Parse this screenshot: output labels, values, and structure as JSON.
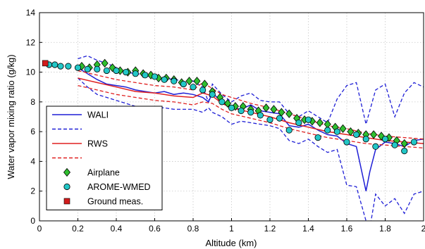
{
  "chart_data": {
    "type": "line",
    "xlabel": "Altitude (km)",
    "ylabel": "Water vapor mixing ratio (g/kg)",
    "xlim": [
      0,
      2
    ],
    "ylim": [
      0,
      14
    ],
    "xticks": [
      "0",
      "0.2",
      "0.4",
      "0.6",
      "0.8",
      "1",
      "1.2",
      "1.4",
      "1.6",
      "1.8",
      "2"
    ],
    "yticks": [
      "0",
      "2",
      "4",
      "6",
      "8",
      "10",
      "12",
      "14"
    ],
    "grid": true,
    "legend_position": "lower-left",
    "series": [
      {
        "name": "WALI",
        "style": "solid",
        "color": "#1f1fd6",
        "x": [
          0.2,
          0.25,
          0.3,
          0.35,
          0.4,
          0.45,
          0.5,
          0.55,
          0.6,
          0.65,
          0.7,
          0.75,
          0.8,
          0.85,
          0.88,
          0.9,
          0.95,
          1.0,
          1.05,
          1.1,
          1.15,
          1.2,
          1.25,
          1.3,
          1.35,
          1.4,
          1.45,
          1.5,
          1.55,
          1.6,
          1.65,
          1.7,
          1.72,
          1.75,
          1.8,
          1.85,
          1.9,
          1.95,
          2.0
        ],
        "y": [
          10.3,
          9.9,
          9.5,
          9.2,
          9.1,
          9.0,
          8.8,
          8.7,
          8.6,
          8.7,
          8.5,
          8.6,
          8.5,
          8.3,
          8.0,
          8.6,
          8.0,
          7.6,
          7.5,
          7.8,
          7.4,
          7.3,
          7.2,
          6.4,
          6.3,
          6.5,
          6.1,
          5.8,
          5.7,
          5.2,
          5.0,
          2.0,
          3.3,
          4.8,
          5.3,
          5.2,
          5.0,
          5.4,
          5.5
        ]
      },
      {
        "name": "",
        "style": "dashed",
        "color": "#1f1fd6",
        "x": [
          0.2,
          0.25,
          0.3,
          0.35,
          0.4,
          0.45,
          0.5,
          0.55,
          0.6,
          0.65,
          0.7,
          0.75,
          0.8,
          0.85,
          0.88,
          0.9,
          0.95,
          1.0,
          1.05,
          1.1,
          1.15,
          1.2,
          1.25,
          1.3,
          1.35,
          1.4,
          1.45,
          1.5,
          1.55,
          1.6,
          1.65,
          1.7,
          1.75,
          1.8,
          1.85,
          1.9,
          1.95,
          2.0
        ],
        "y": [
          10.9,
          11.1,
          10.8,
          10.6,
          10.3,
          10.0,
          9.9,
          9.8,
          9.6,
          9.6,
          9.5,
          9.4,
          9.4,
          9.0,
          8.0,
          9.2,
          8.5,
          8.0,
          8.4,
          8.6,
          8.1,
          8.0,
          8.0,
          7.2,
          7.0,
          7.4,
          7.0,
          6.6,
          8.2,
          9.1,
          9.3,
          6.5,
          8.8,
          9.2,
          7.0,
          8.6,
          9.3,
          9.0
        ]
      },
      {
        "name": "",
        "style": "dashed",
        "color": "#1f1fd6",
        "x": [
          0.2,
          0.25,
          0.3,
          0.35,
          0.4,
          0.45,
          0.5,
          0.55,
          0.6,
          0.65,
          0.7,
          0.75,
          0.8,
          0.85,
          0.88,
          0.9,
          0.95,
          1.0,
          1.05,
          1.1,
          1.15,
          1.2,
          1.25,
          1.3,
          1.35,
          1.4,
          1.45,
          1.5,
          1.55,
          1.6,
          1.65,
          1.7,
          1.72,
          1.75,
          1.8,
          1.85,
          1.9,
          1.95,
          2.0
        ],
        "y": [
          9.6,
          9.0,
          8.5,
          8.3,
          8.1,
          7.9,
          7.7,
          7.6,
          7.6,
          7.6,
          7.5,
          7.5,
          7.5,
          7.3,
          7.6,
          7.3,
          7.0,
          6.5,
          6.7,
          6.6,
          6.5,
          6.4,
          6.2,
          5.4,
          5.2,
          5.5,
          5.0,
          4.6,
          4.8,
          2.4,
          2.3,
          0.0,
          -0.5,
          1.8,
          1.0,
          1.5,
          0.5,
          1.8,
          2.0
        ]
      },
      {
        "name": "RWS",
        "style": "solid",
        "color": "#e02020",
        "x": [
          0.2,
          0.3,
          0.4,
          0.5,
          0.6,
          0.7,
          0.8,
          0.85,
          0.9,
          0.95,
          1.0,
          1.1,
          1.2,
          1.3,
          1.4,
          1.5,
          1.6,
          1.7,
          1.8,
          1.9,
          2.0
        ],
        "y": [
          9.6,
          9.3,
          9.0,
          8.7,
          8.6,
          8.4,
          8.3,
          8.6,
          8.4,
          7.9,
          7.6,
          7.3,
          7.0,
          6.6,
          6.3,
          6.0,
          5.8,
          5.6,
          5.4,
          5.3,
          5.2
        ]
      },
      {
        "name": "",
        "style": "dashed",
        "color": "#e02020",
        "x": [
          0.2,
          0.3,
          0.4,
          0.5,
          0.6,
          0.7,
          0.8,
          0.85,
          0.9,
          0.95,
          1.0,
          1.1,
          1.2,
          1.3,
          1.4,
          1.5,
          1.6,
          1.7,
          1.8,
          1.9,
          2.0
        ],
        "y": [
          10.1,
          9.8,
          9.5,
          9.3,
          9.1,
          9.0,
          8.8,
          9.3,
          8.9,
          8.5,
          8.3,
          7.9,
          7.6,
          7.2,
          6.8,
          6.4,
          6.2,
          5.9,
          5.7,
          5.6,
          5.5
        ]
      },
      {
        "name": "",
        "style": "dashed",
        "color": "#e02020",
        "x": [
          0.2,
          0.3,
          0.4,
          0.5,
          0.6,
          0.7,
          0.8,
          0.85,
          0.9,
          0.95,
          1.0,
          1.1,
          1.2,
          1.3,
          1.4,
          1.5,
          1.6,
          1.7,
          1.8,
          1.9,
          2.0
        ],
        "y": [
          9.1,
          8.8,
          8.5,
          8.3,
          8.1,
          8.0,
          7.8,
          8.0,
          7.9,
          7.5,
          7.2,
          6.9,
          6.6,
          6.2,
          5.9,
          5.6,
          5.4,
          5.2,
          5.1,
          5.0,
          4.9
        ]
      },
      {
        "name": "Airplane",
        "style": "marker-diamond",
        "color": "#2fbf2f",
        "x": [
          0.22,
          0.26,
          0.3,
          0.34,
          0.38,
          0.42,
          0.46,
          0.5,
          0.54,
          0.58,
          0.62,
          0.66,
          0.7,
          0.74,
          0.78,
          0.82,
          0.86,
          0.9,
          0.94,
          0.98,
          1.02,
          1.06,
          1.1,
          1.14,
          1.18,
          1.22,
          1.26,
          1.3,
          1.34,
          1.38,
          1.42,
          1.46,
          1.5,
          1.54,
          1.58,
          1.62,
          1.66,
          1.7,
          1.74,
          1.78,
          1.82,
          1.86,
          1.9
        ],
        "y": [
          10.4,
          10.3,
          10.5,
          10.6,
          10.3,
          10.1,
          10.0,
          10.1,
          9.9,
          9.8,
          9.6,
          9.6,
          9.5,
          9.3,
          9.4,
          9.4,
          9.2,
          8.7,
          8.3,
          7.9,
          7.7,
          7.7,
          7.5,
          7.4,
          7.6,
          7.5,
          7.3,
          7.2,
          6.9,
          6.8,
          6.7,
          6.6,
          6.5,
          6.3,
          6.2,
          6.0,
          5.9,
          5.8,
          5.8,
          5.7,
          5.6,
          5.4,
          5.2
        ]
      },
      {
        "name": "AROME-WMED",
        "style": "marker-circle",
        "color": "#22c7c7",
        "x": [
          0.05,
          0.08,
          0.11,
          0.15,
          0.2,
          0.25,
          0.3,
          0.35,
          0.4,
          0.45,
          0.5,
          0.55,
          0.6,
          0.65,
          0.7,
          0.75,
          0.8,
          0.85,
          0.9,
          0.95,
          1.0,
          1.05,
          1.1,
          1.15,
          1.2,
          1.25,
          1.3,
          1.35,
          1.4,
          1.45,
          1.5,
          1.55,
          1.6,
          1.65,
          1.7,
          1.75,
          1.8,
          1.85,
          1.9,
          1.95
        ],
        "y": [
          10.5,
          10.5,
          10.4,
          10.4,
          10.3,
          10.2,
          10.2,
          10.1,
          10.1,
          10.0,
          9.9,
          9.8,
          9.7,
          9.5,
          9.4,
          9.2,
          9.0,
          8.8,
          8.5,
          8.0,
          7.6,
          7.4,
          7.3,
          7.1,
          6.8,
          6.9,
          6.1,
          6.6,
          6.8,
          5.6,
          6.1,
          6.0,
          5.3,
          5.8,
          5.5,
          5.0,
          5.5,
          5.1,
          4.7,
          5.3
        ]
      },
      {
        "name": "Ground meas.",
        "style": "marker-square",
        "color": "#d21c1c",
        "x": [
          0.03
        ],
        "y": [
          10.6
        ]
      }
    ],
    "legend": [
      {
        "label": "WALI",
        "style": "solid",
        "color": "#1f1fd6"
      },
      {
        "label": "",
        "style": "dashed",
        "color": "#1f1fd6"
      },
      {
        "label": "RWS",
        "style": "solid",
        "color": "#e02020"
      },
      {
        "label": "",
        "style": "dashed",
        "color": "#e02020"
      },
      {
        "label": "Airplane",
        "style": "marker-diamond",
        "color": "#2fbf2f"
      },
      {
        "label": "AROME-WMED",
        "style": "marker-circle",
        "color": "#22c7c7"
      },
      {
        "label": "Ground meas.",
        "style": "marker-square",
        "color": "#d21c1c"
      }
    ]
  }
}
